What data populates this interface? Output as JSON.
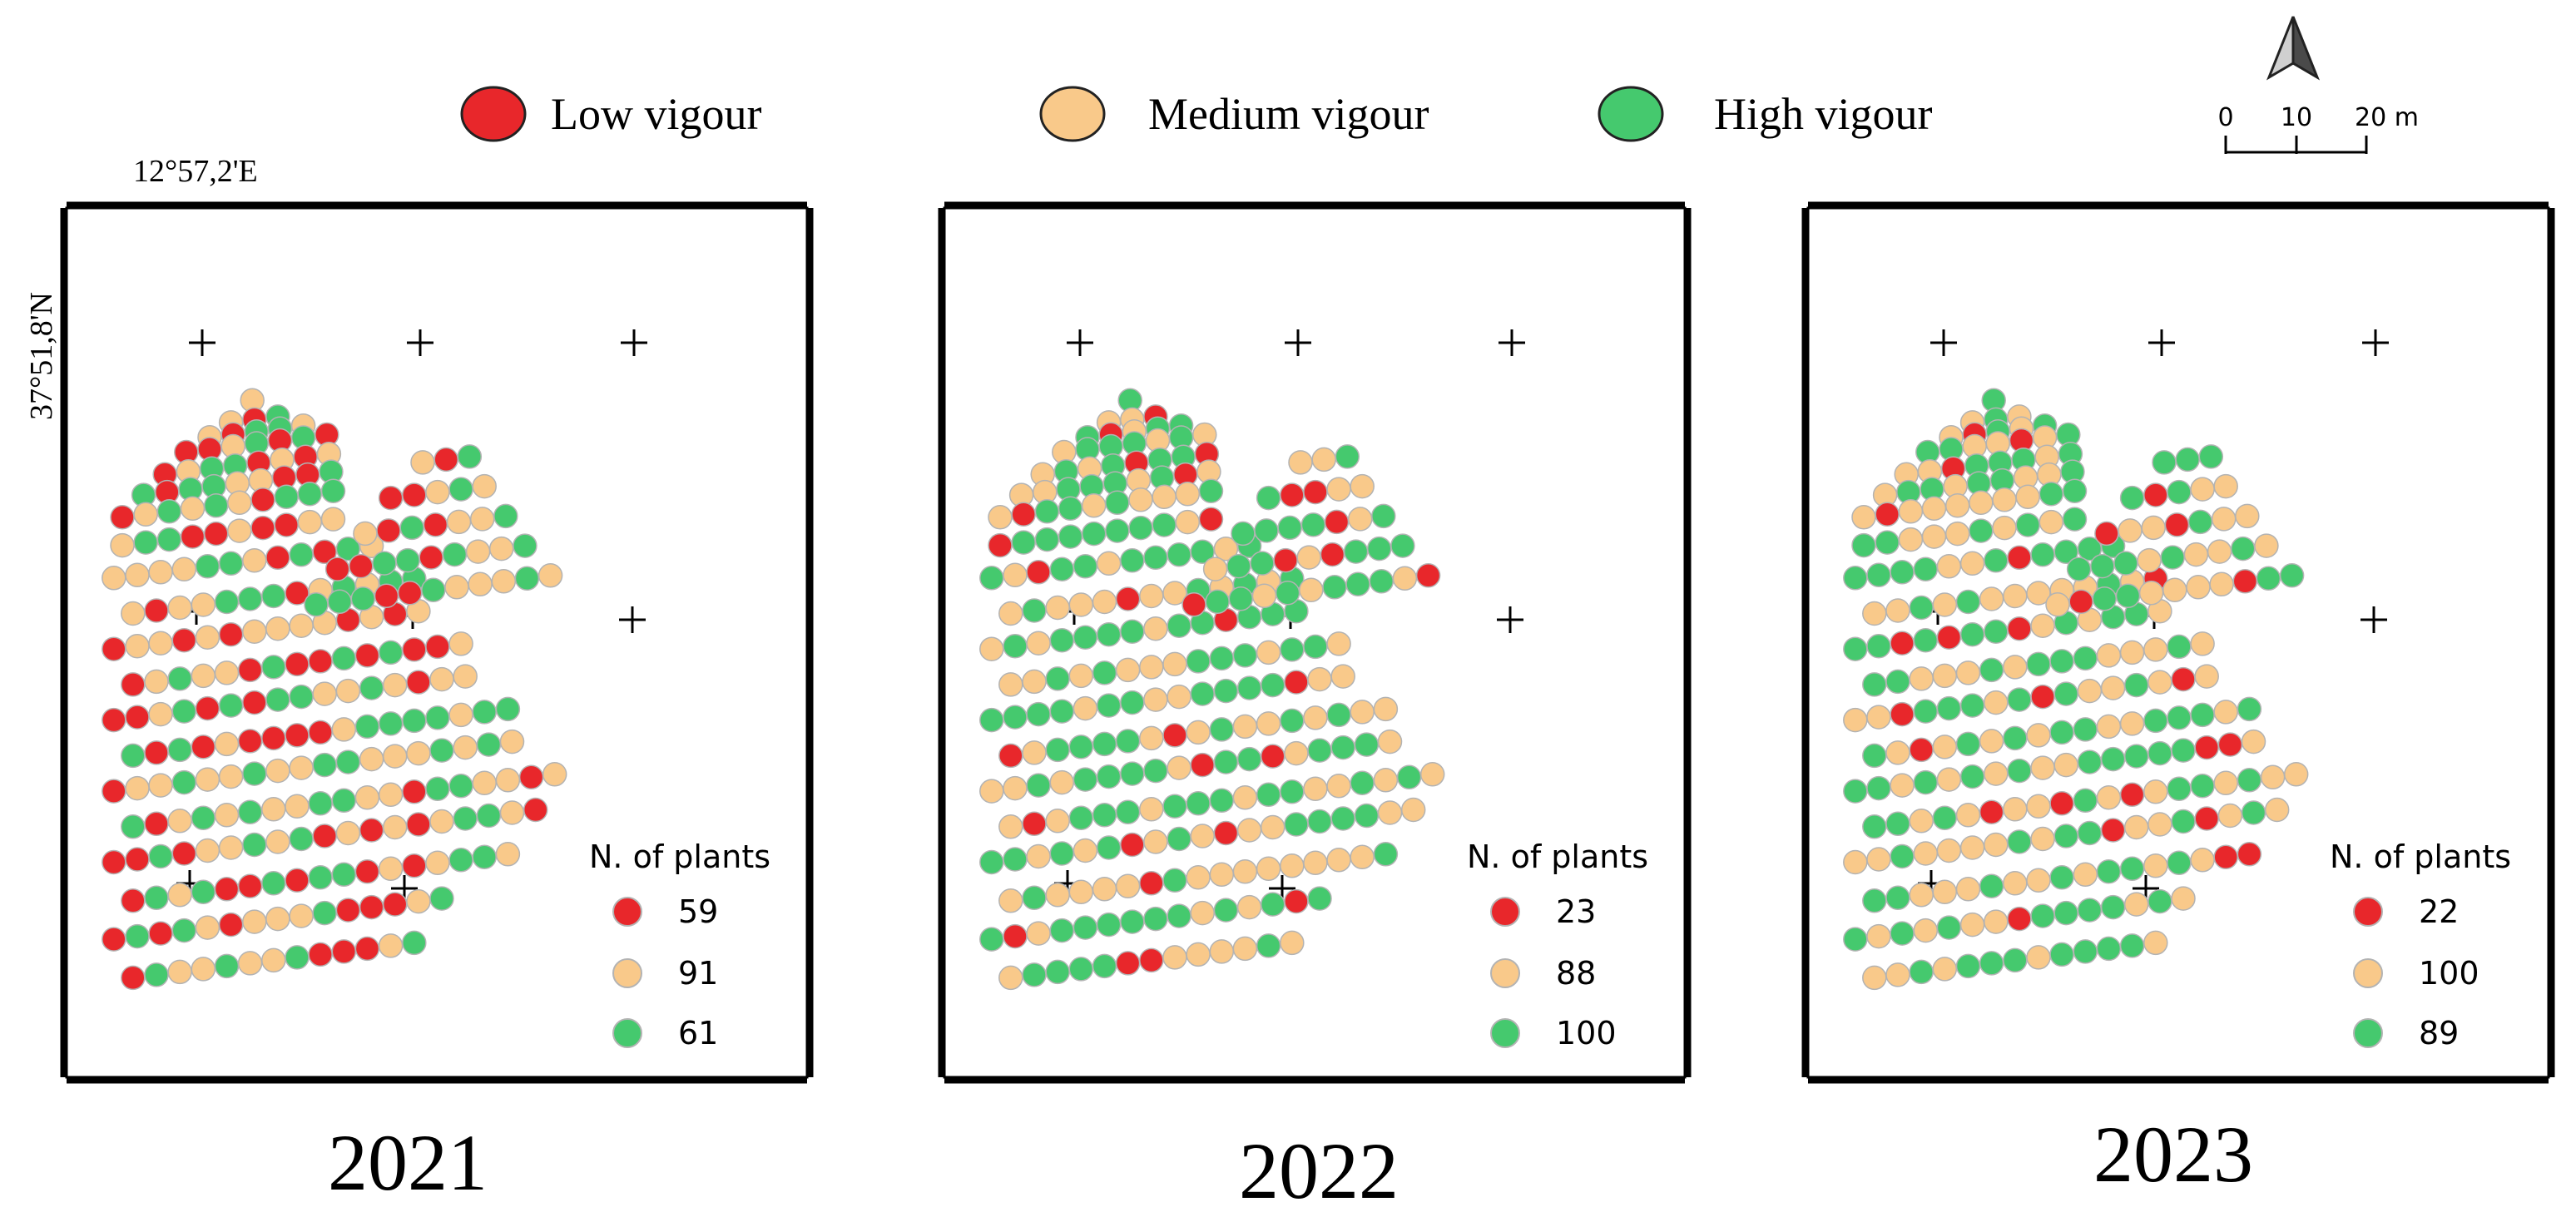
{
  "legend": [
    {
      "key": "low",
      "label": "Low vigour",
      "color": "#e8272b"
    },
    {
      "key": "medium",
      "label": "Medium vigour",
      "color": "#f9c98a"
    },
    {
      "key": "high",
      "label": "High vigour",
      "color": "#45c96e"
    }
  ],
  "scalebar": {
    "ticks": [
      "0",
      "10",
      "20 m"
    ]
  },
  "coords": {
    "longitude": "12°57,2'E",
    "latitude": "37°51,8'N"
  },
  "counts_title": "N. of plants",
  "panels": [
    {
      "year": "2021",
      "counts": {
        "low": "59",
        "medium": "91",
        "high": "61"
      }
    },
    {
      "year": "2022",
      "counts": {
        "low": "23",
        "medium": "88",
        "high": "100"
      }
    },
    {
      "year": "2023",
      "counts": {
        "low": "22",
        "medium": "100",
        "high": "89"
      }
    }
  ],
  "colors": {
    "frame": "#000000",
    "dot_stroke": "#b3b3b3"
  }
}
